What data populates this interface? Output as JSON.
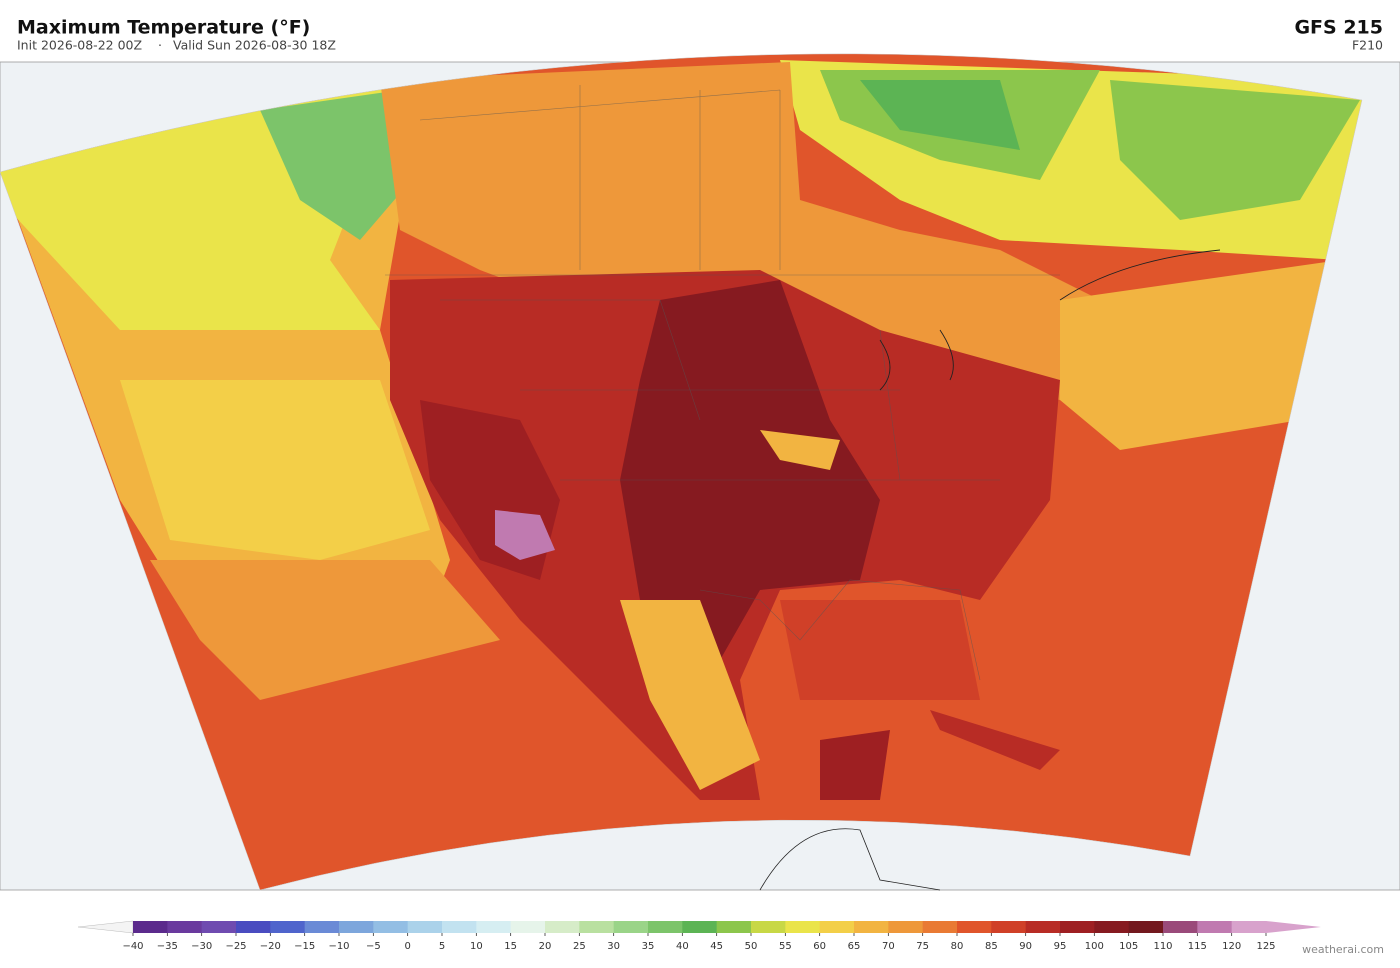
{
  "header": {
    "title": "Maximum Temperature  (°F)",
    "init": "Init 2026-08-22 00Z",
    "separator": "·",
    "valid": "Valid Sun 2026-08-30 18Z",
    "model": "GFS  215",
    "forecast_hour": "F210"
  },
  "colorbar": {
    "ticks": [
      {
        "value": -40,
        "label": "−40"
      },
      {
        "value": -35,
        "label": "−35"
      },
      {
        "value": -30,
        "label": "−30"
      },
      {
        "value": -25,
        "label": "−25"
      },
      {
        "value": -20,
        "label": "−20"
      },
      {
        "value": -15,
        "label": "−15"
      },
      {
        "value": -10,
        "label": "−10"
      },
      {
        "value": -5,
        "label": "−5"
      },
      0,
      5,
      10,
      15,
      20,
      25,
      30,
      35,
      40,
      45,
      50,
      55,
      60,
      65,
      70,
      75,
      80,
      85,
      90,
      95,
      100,
      105,
      110,
      115,
      120,
      125
    ],
    "colors": [
      "#5b2a8c",
      "#6a3a9e",
      "#6f4bb0",
      "#4a4cc0",
      "#4f64cc",
      "#6a8ad6",
      "#7da6dc",
      "#93bee4",
      "#abd2ea",
      "#c2e2f0",
      "#d6eef2",
      "#e6f4ea",
      "#d6ecc8",
      "#b9e0a0",
      "#9ad488",
      "#7cc46a",
      "#5cb454",
      "#8cc64c",
      "#c8d846",
      "#eae44a",
      "#f3cf48",
      "#f2b441",
      "#ee983a",
      "#e97a34",
      "#e0552b",
      "#d04028",
      "#b82c25",
      "#9e1f22",
      "#861a20",
      "#73181e",
      "#9a4a7a",
      "#c07ab0",
      "#d8a2cc"
    ],
    "under_color": "#f4f4f4",
    "over_color": "#d8a2cc"
  },
  "credit": "weatherai.com"
}
